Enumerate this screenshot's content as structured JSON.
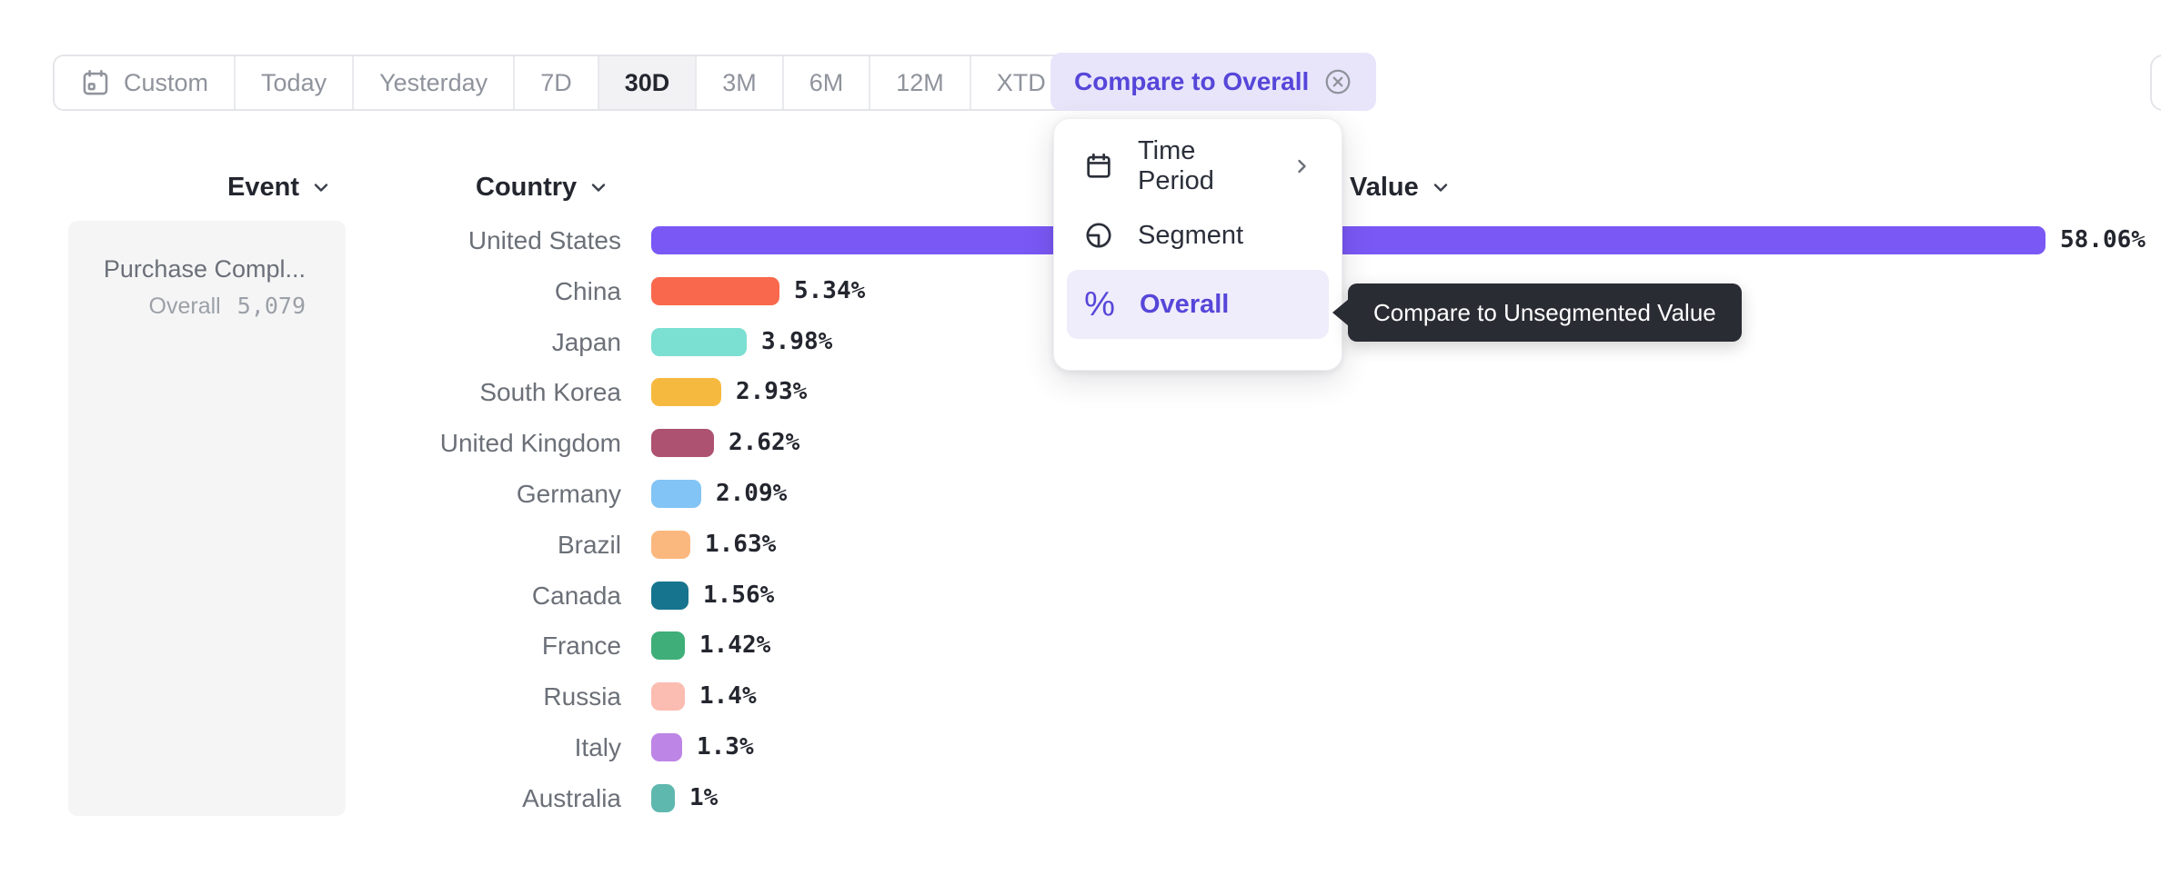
{
  "toolbar": {
    "buttons": [
      {
        "label": "Custom",
        "selected": false
      },
      {
        "label": "Today",
        "selected": false
      },
      {
        "label": "Yesterday",
        "selected": false
      },
      {
        "label": "7D",
        "selected": false
      },
      {
        "label": "30D",
        "selected": true
      },
      {
        "label": "3M",
        "selected": false
      },
      {
        "label": "6M",
        "selected": false
      },
      {
        "label": "12M",
        "selected": false
      },
      {
        "label": "XTD",
        "selected": false
      }
    ],
    "compare_pill_label": "Compare to Overall"
  },
  "columns": {
    "event": "Event",
    "country": "Country",
    "value": "Value"
  },
  "event_card": {
    "title": "Purchase Compl...",
    "overall_label": "Overall",
    "overall_value": "5,079"
  },
  "menu": {
    "items": [
      {
        "label": "Time Period",
        "icon": "calendar-icon",
        "has_submenu": true,
        "selected": false
      },
      {
        "label": "Segment",
        "icon": "segment-icon",
        "has_submenu": false,
        "selected": false
      },
      {
        "label": "Overall",
        "icon": "percent-icon",
        "has_submenu": false,
        "selected": true
      }
    ]
  },
  "tooltip": {
    "text": "Compare to Unsegmented Value"
  },
  "chart_data": {
    "type": "bar",
    "orientation": "horizontal",
    "title": "",
    "xlabel": "",
    "ylabel": "Country",
    "xlim": [
      0,
      60
    ],
    "grid": false,
    "legend": false,
    "categories": [
      "United States",
      "China",
      "Japan",
      "South Korea",
      "United Kingdom",
      "Germany",
      "Brazil",
      "Canada",
      "France",
      "Russia",
      "Italy",
      "Australia"
    ],
    "values": [
      58.06,
      5.34,
      3.98,
      2.93,
      2.62,
      2.09,
      1.63,
      1.56,
      1.42,
      1.4,
      1.3,
      1
    ],
    "value_labels": [
      "58.06%",
      "5.34%",
      "3.98%",
      "2.93%",
      "2.62%",
      "2.09%",
      "1.63%",
      "1.56%",
      "1.42%",
      "1.4%",
      "1.3%",
      "1%"
    ],
    "bar_colors": [
      "#7A58F5",
      "#F9684C",
      "#7BDFD2",
      "#F6B93F",
      "#AD5271",
      "#82C4F5",
      "#FBB87E",
      "#17748F",
      "#3FAE78",
      "#FBBDB1",
      "#BD85E6",
      "#5FB8AE"
    ]
  },
  "colors": {
    "accent_purple": "#5646D9",
    "accent_bar_purple": "#7A58F5",
    "pill_background": "#E8E5FB",
    "menu_highlight": "#EFECFB",
    "tooltip_background": "#2A2C33",
    "card_background": "#F5F5F6",
    "text_dark": "#23262E",
    "text_gray": "#8F939C",
    "border_gray": "#E4E5E9"
  }
}
